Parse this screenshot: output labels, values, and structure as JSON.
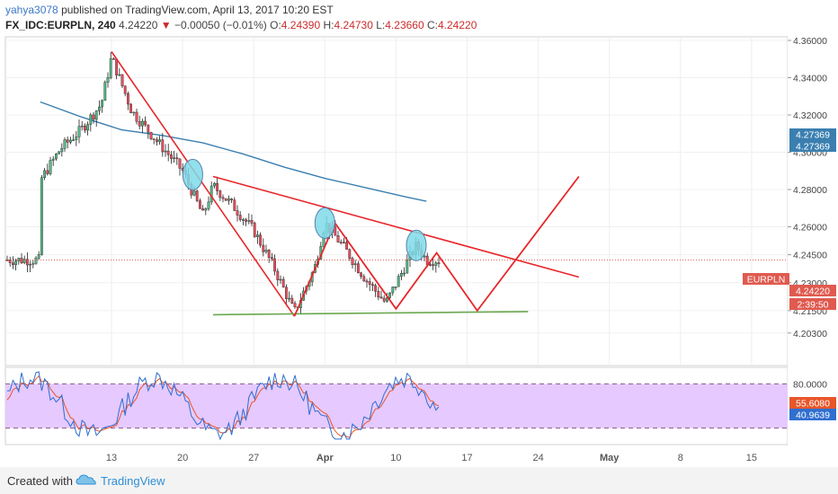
{
  "header": {
    "author": "yahya3078",
    "published_text": "published on TradingView.com, April 13, 2017 10:20 EST",
    "symbol": "FX_IDC:EURPLN, 240",
    "last": "4.24220",
    "change_arrow": "▼",
    "change": "−0.00050 (−0.01%)",
    "o_label": "O:",
    "o_value": "4.24390",
    "h_label": "H:",
    "h_value": "4.24730",
    "l_label": "L:",
    "l_value": "4.23660",
    "c_label": "C:",
    "c_value": "4.24220"
  },
  "footer": {
    "created_with": "Created with",
    "brand": "TradingView",
    "logo_icon": "tradingview-cloud-icon"
  },
  "colors": {
    "bull": "#53b987",
    "bear": "#eb4d5c",
    "drawing": "#e8262b",
    "ma": "#3a7fb0",
    "support": "#6aa84f",
    "highlight": "#7fdbe8",
    "stoch_band": "#e5c9ff",
    "stoch_k": "#2f6fd0",
    "stoch_d": "#e8562a"
  },
  "chart_data": [
    {
      "type": "candlestick",
      "symbol": "EURPLN",
      "timeframe": "240",
      "x_ticks": [
        "13",
        "20",
        "27",
        "Apr",
        "10",
        "17",
        "24",
        "May",
        "8",
        "15"
      ],
      "y_ticks": [
        "4.36000",
        "4.34000",
        "4.32000",
        "4.30000",
        "4.28000",
        "4.26000",
        "4.24500",
        "4.23000",
        "4.21500",
        "4.20300"
      ],
      "ylim": [
        4.2,
        4.364
      ],
      "price_labels": [
        {
          "text": "4.27369",
          "value": 4.27369,
          "color": "#3a7fb0"
        },
        {
          "text": "4.27369",
          "value": 4.27369,
          "color": "#3a7fb0"
        },
        {
          "text": "EURPLN",
          "value": 4.2422,
          "color": "#e05a4f"
        },
        {
          "text": "4.24220",
          "value": 4.2422,
          "color": "#e05a4f"
        },
        {
          "text": "2:39:50",
          "value": 4.2362,
          "color": "#e05a4f"
        }
      ],
      "current_price": 4.2422,
      "moving_average": [
        {
          "x": "Mar 6",
          "y": 4.327
        },
        {
          "x": "Mar 10",
          "y": 4.319
        },
        {
          "x": "Mar 14",
          "y": 4.312
        },
        {
          "x": "Mar 18",
          "y": 4.309
        },
        {
          "x": "Mar 22",
          "y": 4.305
        },
        {
          "x": "Mar 26",
          "y": 4.299
        },
        {
          "x": "Mar 30",
          "y": 4.292
        },
        {
          "x": "Apr 3",
          "y": 4.286
        },
        {
          "x": "Apr 7",
          "y": 4.281
        },
        {
          "x": "Apr 11",
          "y": 4.276
        },
        {
          "x": "Apr 13",
          "y": 4.2737
        }
      ],
      "price_path": [
        {
          "x": "Mar 6",
          "y": 4.285
        },
        {
          "x": "Mar 8",
          "y": 4.302
        },
        {
          "x": "Mar 10",
          "y": 4.312
        },
        {
          "x": "Mar 12",
          "y": 4.326
        },
        {
          "x": "Mar 13",
          "y": 4.351
        },
        {
          "x": "Mar 15",
          "y": 4.322
        },
        {
          "x": "Mar 17",
          "y": 4.309
        },
        {
          "x": "Mar 20",
          "y": 4.29
        },
        {
          "x": "Mar 21",
          "y": 4.278
        },
        {
          "x": "Mar 22",
          "y": 4.266
        },
        {
          "x": "Mar 23",
          "y": 4.282
        },
        {
          "x": "Mar 25",
          "y": 4.271
        },
        {
          "x": "Mar 27",
          "y": 4.258
        },
        {
          "x": "Mar 29",
          "y": 4.238
        },
        {
          "x": "Mar 31",
          "y": 4.214
        },
        {
          "x": "Apr 2",
          "y": 4.238
        },
        {
          "x": "Apr 3",
          "y": 4.262
        },
        {
          "x": "Apr 5",
          "y": 4.248
        },
        {
          "x": "Apr 7",
          "y": 4.232
        },
        {
          "x": "Apr 9",
          "y": 4.219
        },
        {
          "x": "Apr 11",
          "y": 4.24
        },
        {
          "x": "Apr 12",
          "y": 4.25
        },
        {
          "x": "Apr 13",
          "y": 4.2422
        }
      ],
      "drawings": {
        "triangle_upper": [
          {
            "x": "Mar 23",
            "y": 4.287
          },
          {
            "x": "Apr 28",
            "y": 4.233
          }
        ],
        "triangle_lower": [
          {
            "x": "Mar 13",
            "y": 4.354
          },
          {
            "x": "Mar 31",
            "y": 4.212
          }
        ],
        "support_line": [
          {
            "x": "Mar 23",
            "y": 4.2128
          },
          {
            "x": "Apr 23",
            "y": 4.2145
          }
        ],
        "zigzag": [
          {
            "x": "Mar 31",
            "y": 4.212
          },
          {
            "x": "Apr 4",
            "y": 4.262
          },
          {
            "x": "Apr 10",
            "y": 4.216
          },
          {
            "x": "Apr 14",
            "y": 4.246
          },
          {
            "x": "Apr 18",
            "y": 4.215
          },
          {
            "x": "Apr 28",
            "y": 4.287
          }
        ],
        "highlights": [
          {
            "x": "Mar 21",
            "y": 4.288
          },
          {
            "x": "Apr 3",
            "y": 4.262
          },
          {
            "x": "Apr 12",
            "y": 4.25
          }
        ]
      }
    },
    {
      "type": "line",
      "name": "stochastic",
      "y_ticks": [
        "80.0000"
      ],
      "levels": [
        80,
        20
      ],
      "ylim": [
        0,
        100
      ],
      "value_labels": [
        {
          "text": "55.6080",
          "value": 55.608,
          "color": "#e8562a"
        },
        {
          "text": "40.9639",
          "value": 40.9639,
          "color": "#2f6fd0"
        }
      ]
    }
  ]
}
